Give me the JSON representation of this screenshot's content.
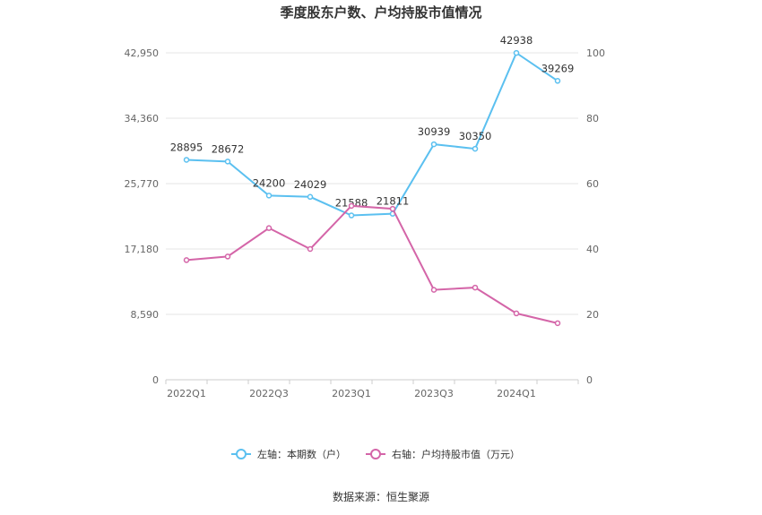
{
  "chart_data": {
    "type": "line",
    "title": "季度股东户数、户均持股市值情况",
    "categories": [
      "2022Q1",
      "2022Q2",
      "2022Q3",
      "2022Q4",
      "2023Q1",
      "2023Q2",
      "2023Q3",
      "2023Q4",
      "2024Q1",
      "2024Q2"
    ],
    "x_tick_labels": [
      "2022Q1",
      "",
      "2022Q3",
      "",
      "2023Q1",
      "",
      "2023Q3",
      "",
      "2024Q1",
      ""
    ],
    "y_left": {
      "ticks": [
        "0",
        "8,590",
        "17,180",
        "25,770",
        "34,360",
        "42,950"
      ],
      "ylim": [
        0,
        42950
      ]
    },
    "y_right": {
      "ticks": [
        "0",
        "20",
        "40",
        "60",
        "80",
        "100"
      ],
      "ylim": [
        0,
        100
      ]
    },
    "series": [
      {
        "name": "左轴：本期数（户）",
        "axis": "left",
        "color": "#5bc0f0",
        "values": [
          28895,
          28672,
          24200,
          24029,
          21588,
          21811,
          30939,
          30350,
          42938,
          39269
        ],
        "labels": [
          "28895",
          "28672",
          "24200",
          "24029",
          "21588",
          "21811",
          "30939",
          "30350",
          "42938",
          "39269"
        ]
      },
      {
        "name": "右轴：户均持股市值（万元）",
        "axis": "right",
        "color": "#d465a8",
        "values": [
          36.6,
          37.7,
          46.4,
          40.0,
          53.2,
          52.3,
          27.5,
          28.2,
          20.3,
          17.3
        ]
      }
    ],
    "grid": true,
    "legend_position": "bottom",
    "source": "数据来源：恒生聚源"
  }
}
